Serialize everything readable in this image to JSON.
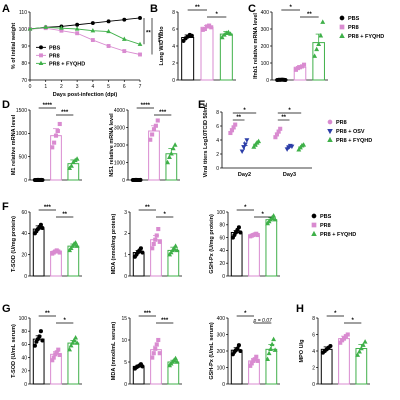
{
  "colors": {
    "PBS": "#000000",
    "PR8": "#d98bd0",
    "PR8 + FYQHD": "#3fb049",
    "PR8 + OSV": "#2c3ea8"
  },
  "legends": {
    "C": [
      {
        "name": "PBS",
        "marker": "circle"
      },
      {
        "name": "PR8",
        "marker": "square"
      },
      {
        "name": "PR8 + FYQHD",
        "marker": "triangle"
      }
    ],
    "E": [
      {
        "name": "PR8",
        "marker": "circle"
      },
      {
        "name": "PR8 + OSV",
        "marker": "triangle-down"
      },
      {
        "name": "PR8 + FYQHD",
        "marker": "triangle"
      }
    ],
    "F": [
      {
        "name": "PBS",
        "marker": "circle"
      },
      {
        "name": "PR8",
        "marker": "square"
      },
      {
        "name": "PR8 + FYQHD",
        "marker": "triangle"
      }
    ]
  },
  "chart_data": [
    {
      "id": "A",
      "letter": "A",
      "type": "line",
      "ylabel": "% of initial weight",
      "xlabel": "Days post-infection (dpi)",
      "xlim": [
        0,
        7
      ],
      "ylim": [
        70,
        110
      ],
      "xticks": [
        0,
        1,
        2,
        3,
        4,
        5,
        6,
        7
      ],
      "yticks": [
        70,
        80,
        90,
        100,
        110
      ],
      "series": [
        {
          "name": "PBS",
          "x": [
            0,
            1,
            2,
            3,
            4,
            5,
            6,
            7
          ],
          "values": [
            100,
            101,
            101.5,
            102.5,
            103.5,
            104.5,
            105.5,
            106.5
          ]
        },
        {
          "name": "PR8",
          "x": [
            0,
            1,
            2,
            3,
            4,
            5,
            6,
            7
          ],
          "values": [
            100,
            100.5,
            99,
            97.5,
            93.5,
            90,
            87,
            85
          ]
        },
        {
          "name": "PR8 + FYQHD",
          "x": [
            0,
            1,
            2,
            3,
            4,
            5,
            6,
            7
          ],
          "values": [
            100,
            101,
            100.5,
            100,
            99,
            98.5,
            94,
            91
          ]
        }
      ],
      "legend": [
        "PBS",
        "PR8",
        "PR8 + FYQHD"
      ],
      "annotations": [
        "**",
        "****"
      ]
    },
    {
      "id": "B",
      "letter": "B",
      "type": "bar",
      "ylabel": "Lung W/D ratio",
      "ylim": [
        0,
        8
      ],
      "yticks": [
        0,
        2,
        4,
        6,
        8
      ],
      "categories": [
        "PBS",
        "PR8",
        "PR8 + FYQHD"
      ],
      "values": [
        5.0,
        6.2,
        5.4
      ],
      "errors": [
        0.3,
        0.2,
        0.3
      ],
      "points": [
        [
          4.6,
          4.9,
          5.1,
          5.3,
          5.2
        ],
        [
          5.9,
          6.0,
          6.3,
          6.4,
          6.2
        ],
        [
          5.0,
          5.3,
          5.5,
          5.6,
          5.4
        ]
      ],
      "brackets": [
        {
          "from": 0,
          "to": 1,
          "label": "**"
        },
        {
          "from": 1,
          "to": 2,
          "label": "*"
        }
      ]
    },
    {
      "id": "C",
      "letter": "C",
      "type": "bar",
      "ylabel": "Ifnb1 relative mRNA level",
      "ylim": [
        0,
        400
      ],
      "yticks": [
        0,
        100,
        200,
        300,
        400
      ],
      "categories": [
        "PBS",
        "PR8",
        "PR8 + FYQHD"
      ],
      "values": [
        1,
        75,
        220
      ],
      "errors": [
        1,
        10,
        50
      ],
      "points": [
        [
          0,
          1,
          1,
          2,
          1,
          0
        ],
        [
          60,
          70,
          75,
          80,
          90
        ],
        [
          140,
          180,
          210,
          260,
          340
        ]
      ],
      "brackets": [
        {
          "from": 0,
          "to": 1,
          "label": "*"
        },
        {
          "from": 1,
          "to": 2,
          "label": "**"
        }
      ]
    },
    {
      "id": "D1",
      "letter": "D",
      "type": "bar",
      "ylabel": "M1 relative mRNA level",
      "ylim": [
        0,
        1500
      ],
      "yticks": [
        0,
        500,
        1000,
        1500
      ],
      "categories": [
        "PBS",
        "PR8",
        "PR8 + FYQHD"
      ],
      "values": [
        1,
        950,
        350
      ],
      "errors": [
        1,
        150,
        80
      ],
      "points": [
        [
          0,
          0,
          1,
          1,
          0,
          1,
          0
        ],
        [
          700,
          800,
          950,
          1050,
          1200
        ],
        [
          250,
          300,
          380,
          420,
          450
        ]
      ],
      "brackets": [
        {
          "from": 0,
          "to": 1,
          "label": "****"
        },
        {
          "from": 1,
          "to": 2,
          "label": "***"
        }
      ]
    },
    {
      "id": "D2",
      "letter": "",
      "type": "bar",
      "ylabel": "NS1 relative mRNA level",
      "ylim": [
        0,
        4000
      ],
      "yticks": [
        0,
        1000,
        2000,
        3000,
        4000
      ],
      "categories": [
        "PBS",
        "PR8",
        "PR8 + FYQHD"
      ],
      "values": [
        1,
        2800,
        1500
      ],
      "errors": [
        1,
        300,
        300
      ],
      "points": [
        [
          0,
          0,
          1,
          1,
          0,
          0,
          1
        ],
        [
          2300,
          2600,
          2900,
          3100,
          3400
        ],
        [
          1000,
          1300,
          1500,
          1800,
          2000
        ]
      ],
      "brackets": [
        {
          "from": 0,
          "to": 1,
          "label": "****"
        },
        {
          "from": 1,
          "to": 2,
          "label": "***"
        }
      ]
    },
    {
      "id": "E",
      "letter": "E",
      "type": "scatter",
      "ylabel": "Viral titers Log10TCID 50/mL",
      "ylim": [
        0,
        8
      ],
      "yticks": [
        0,
        2,
        4,
        6,
        8
      ],
      "categories": [
        "Day2",
        "Day3"
      ],
      "series": [
        {
          "name": "PR8",
          "means": [
            5.6,
            5.0
          ],
          "errors": [
            0.5,
            0.5
          ],
          "points": [
            [
              5.0,
              5.4,
              5.8,
              6.2
            ],
            [
              4.4,
              4.8,
              5.2,
              5.6
            ]
          ]
        },
        {
          "name": "PR8 + OSV",
          "means": [
            3.2,
            3.0
          ],
          "errors": [
            0.6,
            0.3
          ],
          "points": [
            [
              2.4,
              3.0,
              3.4,
              4.0
            ],
            [
              2.7,
              3.0,
              3.2,
              3.1
            ]
          ]
        },
        {
          "name": "PR8 + FYQHD",
          "means": [
            3.4,
            3.0
          ],
          "errors": [
            0.4,
            0.3
          ],
          "points": [
            [
              3.0,
              3.3,
              3.6,
              3.8
            ],
            [
              2.6,
              2.9,
              3.2,
              3.3
            ]
          ]
        }
      ],
      "brackets": [
        {
          "group": 0,
          "from": 0,
          "to": 1,
          "label": "**"
        },
        {
          "group": 0,
          "from": 0,
          "to": 2,
          "label": "*"
        },
        {
          "group": 1,
          "from": 0,
          "to": 1,
          "label": "**"
        },
        {
          "group": 1,
          "from": 0,
          "to": 2,
          "label": "*"
        }
      ]
    },
    {
      "id": "F1",
      "letter": "F",
      "type": "bar",
      "ylabel": "T-SOD (U/mg protein)",
      "ylim": [
        0,
        60
      ],
      "yticks": [
        0,
        20,
        40,
        60
      ],
      "categories": [
        "PBS",
        "PR8",
        "PR8 + FYQHD"
      ],
      "values": [
        44,
        23,
        28
      ],
      "errors": [
        3,
        1,
        2
      ],
      "points": [
        [
          40,
          42,
          44,
          46,
          48,
          45
        ],
        [
          21,
          22,
          23,
          24,
          23,
          22
        ],
        [
          24,
          26,
          28,
          30,
          31,
          28
        ]
      ],
      "brackets": [
        {
          "from": 0,
          "to": 1,
          "label": "***"
        },
        {
          "from": 1,
          "to": 2,
          "label": "**"
        }
      ]
    },
    {
      "id": "F2",
      "letter": "",
      "type": "bar",
      "ylabel": "MDA (nmol/mg protein)",
      "ylim": [
        0,
        3
      ],
      "yticks": [
        0,
        1,
        2,
        3
      ],
      "categories": [
        "PBS",
        "PR8",
        "PR8 + FYQHD"
      ],
      "values": [
        1.1,
        1.7,
        1.2
      ],
      "errors": [
        0.1,
        0.2,
        0.15
      ],
      "points": [
        [
          0.9,
          1.0,
          1.1,
          1.2,
          1.3,
          1.1
        ],
        [
          1.3,
          1.5,
          1.7,
          1.9,
          2.2,
          1.6
        ],
        [
          1.0,
          1.1,
          1.2,
          1.3,
          1.4,
          1.2
        ]
      ],
      "brackets": [
        {
          "from": 0,
          "to": 1,
          "label": "**"
        },
        {
          "from": 1,
          "to": 2,
          "label": "*"
        }
      ]
    },
    {
      "id": "F3",
      "letter": "",
      "type": "bar",
      "ylabel": "GSH-Px (U/mg protein)",
      "ylim": [
        0,
        100
      ],
      "yticks": [
        0,
        20,
        40,
        60,
        80,
        100
      ],
      "categories": [
        "PBS",
        "PR8",
        "PR8 + FYQHD"
      ],
      "values": [
        68,
        64,
        88
      ],
      "errors": [
        3,
        1,
        3
      ],
      "points": [
        [
          60,
          64,
          68,
          72,
          76,
          68
        ],
        [
          62,
          63,
          64,
          65,
          66,
          64
        ],
        [
          82,
          85,
          88,
          91,
          94,
          88
        ]
      ],
      "brackets": [
        {
          "from": 0,
          "to": 1,
          "label": "*"
        },
        {
          "from": 1,
          "to": 2,
          "label": "*"
        }
      ]
    },
    {
      "id": "G1",
      "letter": "G",
      "type": "bar",
      "ylabel": "T-SOD (U/mL serum)",
      "ylim": [
        0,
        100
      ],
      "yticks": [
        0,
        20,
        40,
        60,
        80,
        100
      ],
      "categories": [
        "PBS",
        "PR8",
        "PR8 + FYQHD"
      ],
      "values": [
        68,
        45,
        62
      ],
      "errors": [
        5,
        4,
        4
      ],
      "points": [
        [
          58,
          64,
          68,
          72,
          80,
          66
        ],
        [
          36,
          40,
          45,
          48,
          52,
          44
        ],
        [
          52,
          58,
          62,
          66,
          70,
          62
        ]
      ],
      "brackets": [
        {
          "from": 0,
          "to": 1,
          "label": "**"
        },
        {
          "from": 1,
          "to": 2,
          "label": "*"
        }
      ]
    },
    {
      "id": "G2",
      "letter": "",
      "type": "bar",
      "ylabel": "MDA (nmol/mL serum)",
      "ylim": [
        0,
        15
      ],
      "yticks": [
        0,
        5,
        10,
        15
      ],
      "categories": [
        "PBS",
        "PR8",
        "PR8 + FYQHD"
      ],
      "values": [
        4,
        7.8,
        5
      ],
      "errors": [
        0.3,
        0.8,
        0.4
      ],
      "points": [
        [
          3.5,
          3.8,
          4.0,
          4.2,
          4.5,
          4.0
        ],
        [
          6.0,
          7.0,
          8.0,
          9.0,
          10.0,
          7.0
        ],
        [
          4.2,
          4.6,
          5.0,
          5.4,
          5.8,
          5.0
        ]
      ],
      "brackets": [
        {
          "from": 0,
          "to": 1,
          "label": "***"
        },
        {
          "from": 1,
          "to": 2,
          "label": "***"
        }
      ]
    },
    {
      "id": "G3",
      "letter": "",
      "type": "bar",
      "ylabel": "GSH-Px (U/mL serum)",
      "ylim": [
        0,
        400
      ],
      "yticks": [
        0,
        100,
        200,
        300,
        400
      ],
      "categories": [
        "PBS",
        "PR8",
        "PR8 + FYQHD"
      ],
      "values": [
        205,
        140,
        210
      ],
      "errors": [
        15,
        15,
        30
      ],
      "points": [
        [
          180,
          195,
          205,
          215,
          235,
          200
        ],
        [
          110,
          125,
          140,
          150,
          165,
          140
        ],
        [
          150,
          185,
          210,
          240,
          270,
          205
        ]
      ],
      "brackets": [
        {
          "from": 0,
          "to": 1,
          "label": "*"
        },
        {
          "from": 1,
          "to": 2,
          "label": "p = 0.07"
        }
      ]
    },
    {
      "id": "H",
      "letter": "H",
      "type": "bar",
      "ylabel": "MPO U/g",
      "ylim": [
        0,
        8
      ],
      "yticks": [
        0,
        2,
        4,
        6,
        8
      ],
      "categories": [
        "PBS",
        "PR8",
        "PR8 + FYQHD"
      ],
      "values": [
        4.2,
        5.5,
        4.3
      ],
      "errors": [
        0.3,
        0.3,
        0.5
      ],
      "points": [
        [
          3.8,
          4.0,
          4.2,
          4.4,
          4.6
        ],
        [
          5.0,
          5.3,
          5.5,
          5.8,
          6.0
        ],
        [
          3.5,
          3.9,
          4.3,
          4.7,
          5.1
        ]
      ],
      "brackets": [
        {
          "from": 0,
          "to": 1,
          "label": "*"
        },
        {
          "from": 1,
          "to": 2,
          "label": "*"
        }
      ]
    }
  ]
}
